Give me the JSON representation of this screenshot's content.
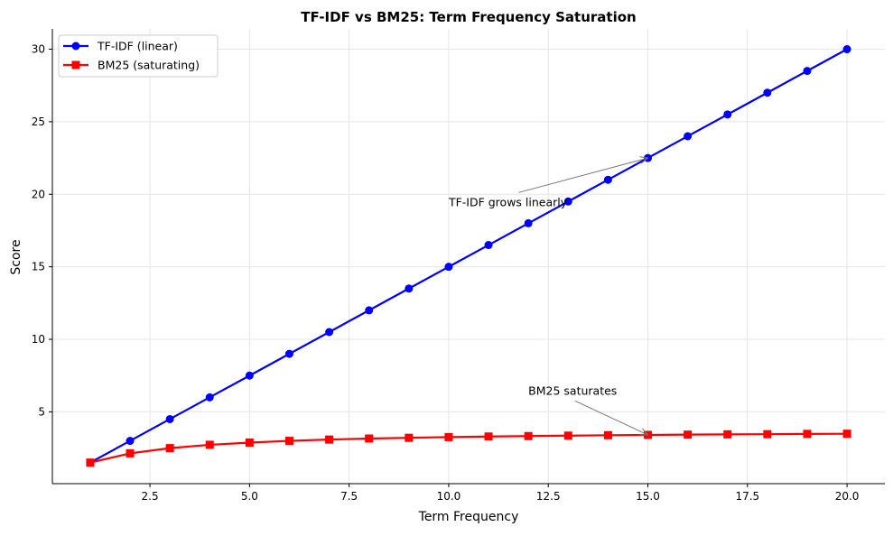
{
  "chart_data": {
    "type": "line",
    "title": "TF-IDF vs BM25: Term Frequency Saturation",
    "xlabel": "Term Frequency",
    "ylabel": "Score",
    "xlim": [
      0.05,
      20.95
    ],
    "ylim": [
      0.05,
      31.4
    ],
    "xticks": [
      2.5,
      5.0,
      7.5,
      10.0,
      12.5,
      15.0,
      17.5,
      20.0
    ],
    "xtick_labels": [
      "2.5",
      "5.0",
      "7.5",
      "10.0",
      "12.5",
      "15.0",
      "17.5",
      "20.0"
    ],
    "yticks": [
      5,
      10,
      15,
      20,
      25,
      30
    ],
    "ytick_labels": [
      "5",
      "10",
      "15",
      "20",
      "25",
      "30"
    ],
    "grid": true,
    "legend_position": "top-left",
    "x": [
      1,
      2,
      3,
      4,
      5,
      6,
      7,
      8,
      9,
      10,
      11,
      12,
      13,
      14,
      15,
      16,
      17,
      18,
      19,
      20
    ],
    "series": [
      {
        "name": "TF-IDF (linear)",
        "color": "#0000ff",
        "marker": "circle",
        "values": [
          1.5,
          3.0,
          4.5,
          6.0,
          7.5,
          9.0,
          10.5,
          12.0,
          13.5,
          15.0,
          16.5,
          18.0,
          19.5,
          21.0,
          22.5,
          24.0,
          25.5,
          27.0,
          28.5,
          30.0
        ]
      },
      {
        "name": "BM25 (saturating)",
        "color": "#ff0000",
        "marker": "square",
        "values": [
          1.5,
          2.14,
          2.5,
          2.73,
          2.88,
          3.0,
          3.09,
          3.16,
          3.21,
          3.26,
          3.3,
          3.33,
          3.36,
          3.39,
          3.41,
          3.43,
          3.45,
          3.46,
          3.48,
          3.49
        ]
      }
    ],
    "annotations": [
      {
        "text": "TF-IDF grows linearly",
        "text_at": [
          10.0,
          19.5
        ],
        "arrow_to": [
          15.0,
          22.5
        ]
      },
      {
        "text": "BM25 saturates",
        "text_at": [
          12.0,
          6.5
        ],
        "arrow_to": [
          15.0,
          3.41
        ]
      }
    ]
  }
}
